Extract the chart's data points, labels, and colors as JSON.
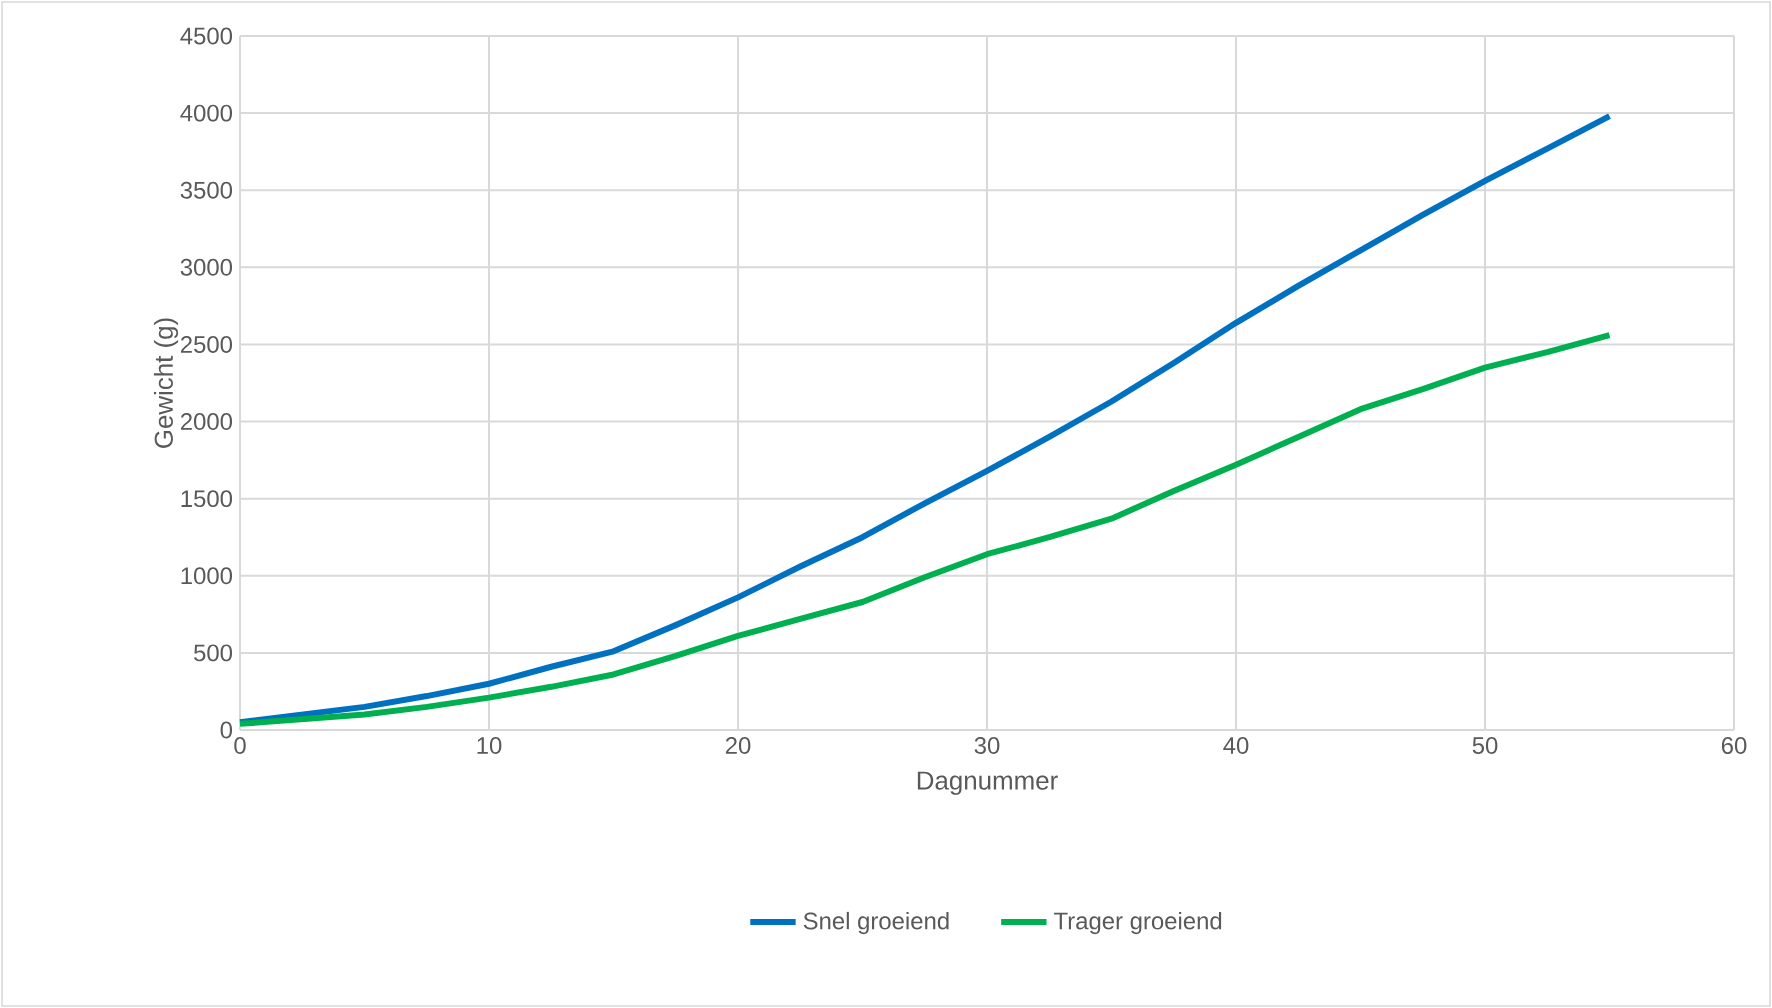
{
  "chart_data": {
    "type": "line",
    "xlabel": "Dagnummer",
    "ylabel": "Gewicht (g)",
    "x": [
      0,
      2.5,
      5,
      7.5,
      10,
      12.5,
      15,
      17.5,
      20,
      22.5,
      25,
      27.5,
      30,
      32.5,
      35,
      37.5,
      40,
      42.5,
      45,
      47.5,
      50,
      52.5,
      55
    ],
    "series": [
      {
        "name": "Snel groeiend",
        "color": "#0070c0",
        "values": [
          50,
          100,
          150,
          220,
          300,
          410,
          510,
          680,
          860,
          1060,
          1250,
          1470,
          1680,
          1900,
          2130,
          2380,
          2640,
          2880,
          3110,
          3340,
          3560,
          3770,
          3980
        ]
      },
      {
        "name": "Trager groeiend",
        "color": "#00b050",
        "values": [
          40,
          70,
          100,
          150,
          210,
          280,
          360,
          480,
          610,
          720,
          830,
          990,
          1140,
          1250,
          1370,
          1550,
          1720,
          1900,
          2080,
          2210,
          2350,
          2450,
          2560
        ]
      }
    ],
    "xlim": [
      0,
      60
    ],
    "xticks": [
      0,
      10,
      20,
      30,
      40,
      50,
      60
    ],
    "ylim": [
      0,
      4500
    ],
    "yticks": [
      0,
      500,
      1000,
      1500,
      2000,
      2500,
      3000,
      3500,
      4000,
      4500
    ],
    "grid": true,
    "legend": "bottom",
    "marker": "none",
    "line_style": "solid"
  }
}
